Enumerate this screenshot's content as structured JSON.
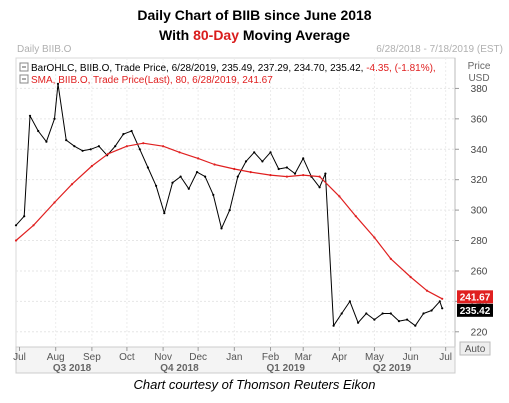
{
  "title": {
    "line1": "Daily Chart of BIIB since June 2018",
    "line2_prefix": "With ",
    "line2_accent": "80-Day",
    "line2_suffix": " Moving Average"
  },
  "header": {
    "left": "Daily BIIB.O",
    "right": "6/28/2018 - 7/18/2019 (EST)"
  },
  "caption": "Chart courtesy of Thomson Reuters Eikon",
  "chart_data": {
    "type": "line",
    "ylim": [
      210,
      400
    ],
    "y_ticks": [
      220,
      240,
      260,
      280,
      300,
      320,
      340,
      360,
      380
    ],
    "y_axis_title": [
      "Price",
      "USD"
    ],
    "auto_label": "Auto",
    "month_labels": [
      {
        "label": "Jul",
        "date": "2018-07-01"
      },
      {
        "label": "Aug",
        "date": "2018-08-01"
      },
      {
        "label": "Sep",
        "date": "2018-09-01"
      },
      {
        "label": "Oct",
        "date": "2018-10-01"
      },
      {
        "label": "Nov",
        "date": "2018-11-01"
      },
      {
        "label": "Dec",
        "date": "2018-12-01"
      },
      {
        "label": "Jan",
        "date": "2019-01-01"
      },
      {
        "label": "Feb",
        "date": "2019-02-01"
      },
      {
        "label": "Mar",
        "date": "2019-03-01"
      },
      {
        "label": "Apr",
        "date": "2019-04-01"
      },
      {
        "label": "May",
        "date": "2019-05-01"
      },
      {
        "label": "Jun",
        "date": "2019-06-01"
      },
      {
        "label": "Jul",
        "date": "2019-07-01"
      }
    ],
    "quarter_labels": [
      {
        "label": "Q3 2018",
        "date": "2018-08-15"
      },
      {
        "label": "Q4 2018",
        "date": "2018-11-15"
      },
      {
        "label": "Q1 2019",
        "date": "2019-02-14"
      },
      {
        "label": "Q2 2019",
        "date": "2019-05-16"
      }
    ],
    "legend": [
      {
        "text": "BarOHLC, BIIB.O, Trade Price, 6/28/2019, 235.49, 237.29, 234.70, 235.42, ",
        "change": "-4.35, (-1.81%), ",
        "color": "#000000"
      },
      {
        "text": "SMA, BIIB.O, Trade Price(Last),  80, 6/28/2019, 241.67",
        "change": "",
        "color": "#e02020"
      }
    ],
    "series": [
      {
        "name": "BarOHLC",
        "color": "#000000",
        "points": [
          {
            "date": "2018-06-28",
            "value": 290
          },
          {
            "date": "2018-07-05",
            "value": 296
          },
          {
            "date": "2018-07-10",
            "value": 362
          },
          {
            "date": "2018-07-17",
            "value": 352
          },
          {
            "date": "2018-07-24",
            "value": 345
          },
          {
            "date": "2018-07-31",
            "value": 360
          },
          {
            "date": "2018-08-03",
            "value": 383
          },
          {
            "date": "2018-08-10",
            "value": 346
          },
          {
            "date": "2018-08-17",
            "value": 342
          },
          {
            "date": "2018-08-24",
            "value": 339
          },
          {
            "date": "2018-08-31",
            "value": 340
          },
          {
            "date": "2018-09-07",
            "value": 342
          },
          {
            "date": "2018-09-14",
            "value": 336
          },
          {
            "date": "2018-09-21",
            "value": 342
          },
          {
            "date": "2018-09-28",
            "value": 350
          },
          {
            "date": "2018-10-05",
            "value": 352
          },
          {
            "date": "2018-10-12",
            "value": 340
          },
          {
            "date": "2018-10-19",
            "value": 328
          },
          {
            "date": "2018-10-26",
            "value": 316
          },
          {
            "date": "2018-11-02",
            "value": 298
          },
          {
            "date": "2018-11-09",
            "value": 318
          },
          {
            "date": "2018-11-16",
            "value": 322
          },
          {
            "date": "2018-11-23",
            "value": 314
          },
          {
            "date": "2018-11-30",
            "value": 325
          },
          {
            "date": "2018-12-07",
            "value": 322
          },
          {
            "date": "2018-12-14",
            "value": 310
          },
          {
            "date": "2018-12-21",
            "value": 288
          },
          {
            "date": "2018-12-28",
            "value": 300
          },
          {
            "date": "2019-01-04",
            "value": 322
          },
          {
            "date": "2019-01-11",
            "value": 332
          },
          {
            "date": "2019-01-18",
            "value": 338
          },
          {
            "date": "2019-01-25",
            "value": 332
          },
          {
            "date": "2019-02-01",
            "value": 338
          },
          {
            "date": "2019-02-08",
            "value": 327
          },
          {
            "date": "2019-02-15",
            "value": 328
          },
          {
            "date": "2019-02-22",
            "value": 324
          },
          {
            "date": "2019-03-01",
            "value": 334
          },
          {
            "date": "2019-03-08",
            "value": 322
          },
          {
            "date": "2019-03-15",
            "value": 315
          },
          {
            "date": "2019-03-20",
            "value": 324
          },
          {
            "date": "2019-03-27",
            "value": 224
          },
          {
            "date": "2019-04-03",
            "value": 232
          },
          {
            "date": "2019-04-10",
            "value": 240
          },
          {
            "date": "2019-04-17",
            "value": 226
          },
          {
            "date": "2019-04-24",
            "value": 232
          },
          {
            "date": "2019-05-01",
            "value": 228
          },
          {
            "date": "2019-05-08",
            "value": 232
          },
          {
            "date": "2019-05-15",
            "value": 232
          },
          {
            "date": "2019-05-22",
            "value": 227
          },
          {
            "date": "2019-05-29",
            "value": 228
          },
          {
            "date": "2019-06-05",
            "value": 224
          },
          {
            "date": "2019-06-12",
            "value": 232
          },
          {
            "date": "2019-06-19",
            "value": 234
          },
          {
            "date": "2019-06-26",
            "value": 240
          },
          {
            "date": "2019-06-28",
            "value": 235.42
          }
        ]
      },
      {
        "name": "SMA",
        "color": "#e02020",
        "points": [
          {
            "date": "2018-06-28",
            "value": 280
          },
          {
            "date": "2018-07-13",
            "value": 290
          },
          {
            "date": "2018-07-31",
            "value": 305
          },
          {
            "date": "2018-08-15",
            "value": 317
          },
          {
            "date": "2018-09-01",
            "value": 329
          },
          {
            "date": "2018-09-15",
            "value": 337
          },
          {
            "date": "2018-10-01",
            "value": 342
          },
          {
            "date": "2018-10-15",
            "value": 344
          },
          {
            "date": "2018-11-01",
            "value": 342
          },
          {
            "date": "2018-11-15",
            "value": 338
          },
          {
            "date": "2018-12-01",
            "value": 334
          },
          {
            "date": "2018-12-15",
            "value": 330
          },
          {
            "date": "2019-01-01",
            "value": 327
          },
          {
            "date": "2019-01-15",
            "value": 325
          },
          {
            "date": "2019-02-01",
            "value": 323
          },
          {
            "date": "2019-02-15",
            "value": 322
          },
          {
            "date": "2019-03-01",
            "value": 323
          },
          {
            "date": "2019-03-15",
            "value": 322
          },
          {
            "date": "2019-04-01",
            "value": 309
          },
          {
            "date": "2019-04-15",
            "value": 296
          },
          {
            "date": "2019-05-01",
            "value": 282
          },
          {
            "date": "2019-05-15",
            "value": 268
          },
          {
            "date": "2019-06-01",
            "value": 256
          },
          {
            "date": "2019-06-15",
            "value": 247
          },
          {
            "date": "2019-06-28",
            "value": 241.67
          }
        ]
      }
    ],
    "last_labels": [
      {
        "value": 241.67,
        "text": "241.67",
        "bg": "#e02020",
        "fg": "#ffffff"
      },
      {
        "value": 235.42,
        "text": "235.42",
        "bg": "#000000",
        "fg": "#ffffff"
      }
    ]
  }
}
